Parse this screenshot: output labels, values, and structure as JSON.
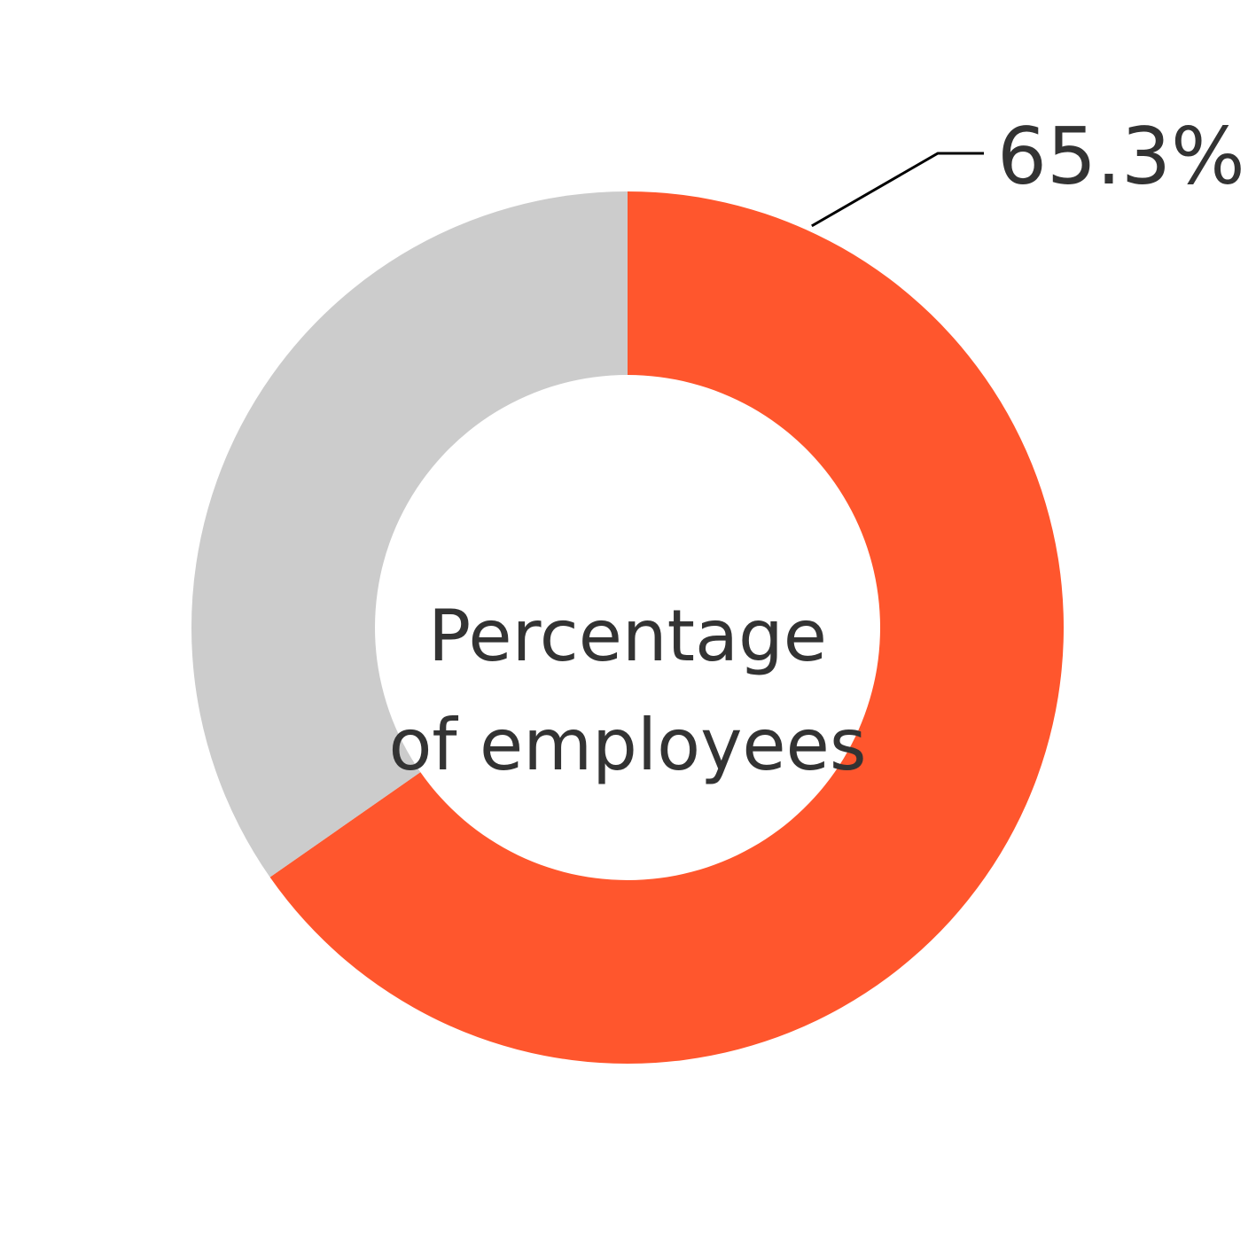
{
  "chart_data": {
    "type": "donut",
    "values": [
      65.3,
      34.7
    ],
    "value_labels": [
      "65.3%",
      null
    ],
    "colors": [
      "#ff562d",
      "#cccccc"
    ],
    "center_label": [
      "Percentage",
      "of employees"
    ]
  }
}
